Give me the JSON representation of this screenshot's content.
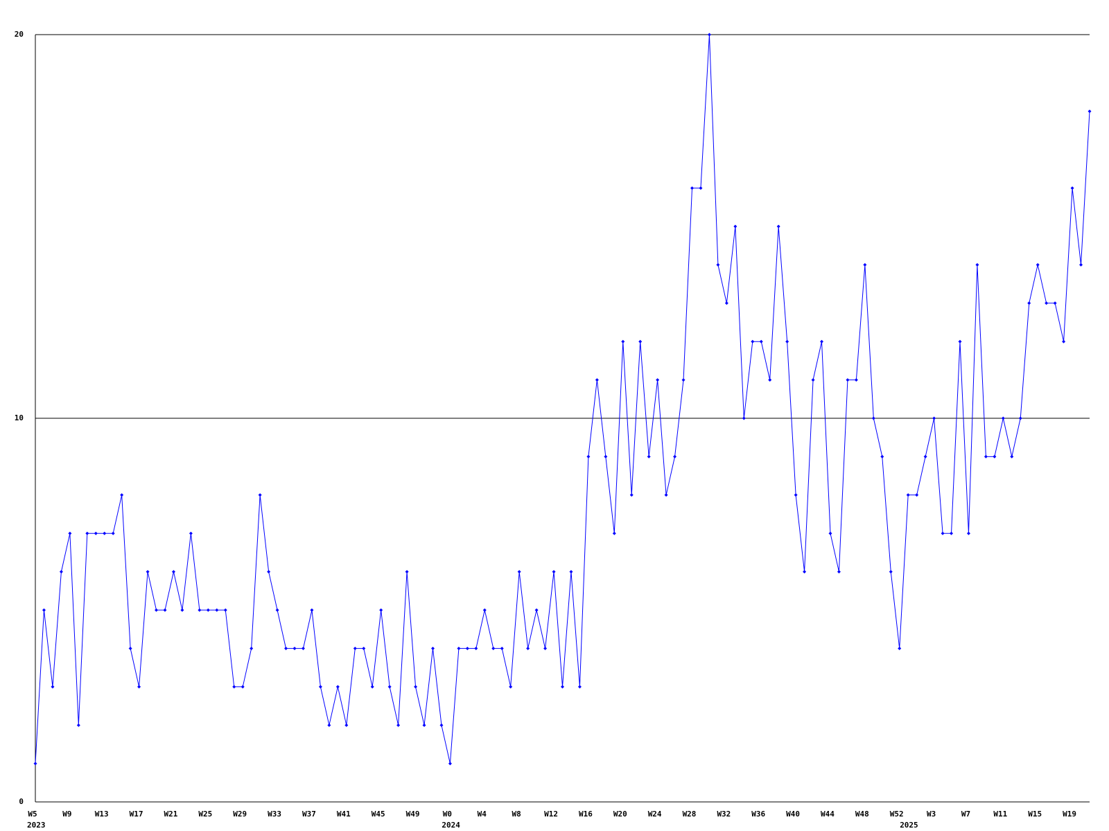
{
  "chart_data": {
    "type": "line",
    "color": "#0000ff",
    "grid": true,
    "categories": [
      "W5",
      null,
      null,
      null,
      "W9",
      null,
      null,
      null,
      "W13",
      null,
      null,
      null,
      "W17",
      null,
      null,
      null,
      "W21",
      null,
      null,
      null,
      "W25",
      null,
      null,
      null,
      "W29",
      null,
      null,
      null,
      "W33",
      null,
      null,
      null,
      "W37",
      null,
      null,
      null,
      "W41",
      null,
      null,
      null,
      "W45",
      null,
      null,
      null,
      "W49",
      null,
      null,
      null,
      "W0",
      null,
      null,
      null,
      "W4",
      null,
      null,
      null,
      "W8",
      null,
      null,
      null,
      "W12",
      null,
      null,
      null,
      "W16",
      null,
      null,
      null,
      "W20",
      null,
      null,
      null,
      "W24",
      null,
      null,
      null,
      "W28",
      null,
      null,
      null,
      "W32",
      null,
      null,
      null,
      "W36",
      null,
      null,
      null,
      "W40",
      null,
      null,
      null,
      "W44",
      null,
      null,
      null,
      "W48",
      null,
      null,
      null,
      "W52",
      null,
      null,
      null,
      "W3",
      null,
      null,
      null,
      "W7",
      null,
      null,
      null,
      "W11",
      null,
      null,
      null,
      "W15",
      null,
      null,
      null,
      "W19",
      null,
      null
    ],
    "year_groups": [
      {
        "label": "2023",
        "first": 0
      },
      {
        "label": "2024",
        "first": 48
      },
      {
        "label": "2025",
        "first": 101
      }
    ],
    "values": [
      1,
      5,
      3,
      6,
      7,
      2,
      7,
      7,
      7,
      7,
      8,
      4,
      3,
      6,
      5,
      5,
      6,
      5,
      7,
      5,
      5,
      5,
      5,
      3,
      3,
      4,
      8,
      6,
      5,
      4,
      4,
      4,
      5,
      3,
      2,
      3,
      2,
      4,
      4,
      3,
      5,
      3,
      2,
      6,
      3,
      2,
      4,
      2,
      1,
      4,
      4,
      4,
      5,
      4,
      4,
      3,
      6,
      4,
      5,
      4,
      6,
      3,
      6,
      3,
      9,
      11,
      9,
      7,
      12,
      8,
      12,
      9,
      11,
      8,
      9,
      11,
      16,
      16,
      20,
      14,
      13,
      15,
      10,
      12,
      12,
      11,
      15,
      12,
      8,
      6,
      11,
      12,
      7,
      6,
      11,
      11,
      14,
      10,
      9,
      6,
      4,
      8,
      8,
      9,
      10,
      7,
      7,
      12,
      7,
      14,
      9,
      9,
      10,
      9,
      10,
      13,
      14,
      13,
      13,
      12,
      16,
      14,
      18
    ],
    "ylim": [
      0,
      20
    ],
    "yticks": [
      0,
      10,
      20
    ]
  }
}
